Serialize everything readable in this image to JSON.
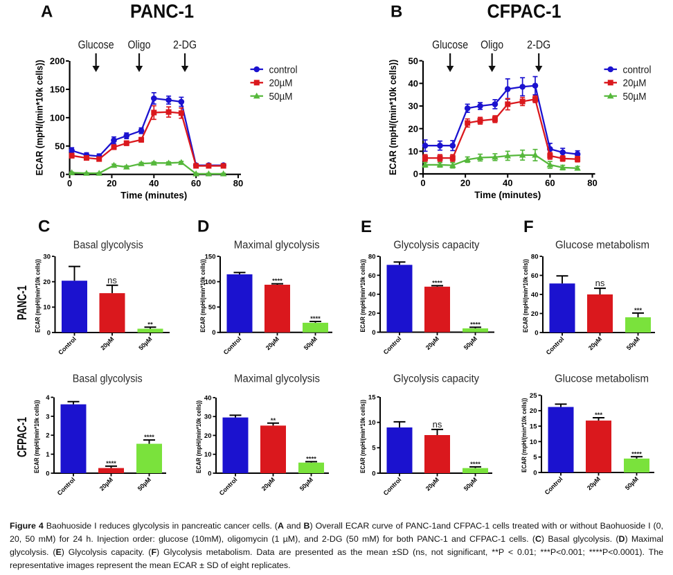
{
  "figure": {
    "panels": {
      "A": {
        "letter": "A",
        "title": "PANC-1"
      },
      "B": {
        "letter": "B",
        "title": "CFPAC-1"
      },
      "C": {
        "letter": "C"
      },
      "D": {
        "letter": "D"
      },
      "E": {
        "letter": "E"
      },
      "F": {
        "letter": "F"
      }
    },
    "row_labels": [
      "PANC-1",
      "CFPAC-1"
    ]
  },
  "colors": {
    "control": "#1b12cf",
    "dose20": "#da181d",
    "dose50_line": "#56b83c",
    "dose50_bar": "#7ae23c",
    "axis": "#000000",
    "background": "#ffffff"
  },
  "chart_data": [
    {
      "id": "A",
      "type": "line",
      "title": "PANC-1",
      "xlabel": "Time (minutes)",
      "ylabel": "ECAR (mpH/(min*10k cells))",
      "xlim": [
        0,
        80
      ],
      "ylim": [
        0,
        200
      ],
      "xticks": [
        0,
        20,
        40,
        60,
        80
      ],
      "yticks": [
        0,
        50,
        100,
        150,
        200
      ],
      "annotations": [
        {
          "label": "Glucose",
          "x": 12.5
        },
        {
          "label": "Oligo",
          "x": 33
        },
        {
          "label": "2-DG",
          "x": 54.7
        }
      ],
      "x": [
        1,
        8,
        14,
        21,
        27,
        34,
        40,
        47,
        53,
        60,
        66,
        73
      ],
      "series": [
        {
          "name": "control",
          "color_key": "control",
          "marker": "circle",
          "values": [
            42,
            34,
            32,
            60,
            68,
            77,
            134,
            131,
            128,
            16,
            16,
            16
          ],
          "errors": [
            5,
            4,
            4,
            6,
            5,
            5,
            10,
            7,
            8,
            2,
            2,
            2
          ]
        },
        {
          "name": "20µM",
          "color_key": "dose20",
          "marker": "square",
          "values": [
            33,
            29,
            27,
            48,
            55,
            61,
            109,
            110,
            108,
            15,
            15,
            15
          ],
          "errors": [
            4,
            3,
            3,
            4,
            4,
            4,
            12,
            9,
            9,
            2,
            2,
            2
          ]
        },
        {
          "name": "50µM",
          "color_key": "dose50_line",
          "marker": "triangle",
          "values": [
            3,
            2,
            2,
            16,
            13,
            19,
            20,
            20,
            21,
            1,
            1,
            1
          ],
          "errors": [
            1,
            1,
            1,
            2,
            2,
            2,
            2,
            2,
            2,
            1,
            1,
            1
          ]
        }
      ]
    },
    {
      "id": "B",
      "type": "line",
      "title": "CFPAC-1",
      "xlabel": "Time (minutes)",
      "ylabel": "ECAR (mpH/(min*10k cells))",
      "xlim": [
        0,
        80
      ],
      "ylim": [
        0,
        50
      ],
      "xticks": [
        0,
        20,
        40,
        60,
        80
      ],
      "yticks": [
        0,
        10,
        20,
        30,
        40,
        50
      ],
      "annotations": [
        {
          "label": "Glucose",
          "x": 12.8
        },
        {
          "label": "Oligo",
          "x": 32.6
        },
        {
          "label": "2-DG",
          "x": 54.7
        }
      ],
      "x": [
        1,
        8,
        14,
        21,
        27,
        34,
        40,
        47,
        53,
        60,
        66,
        73
      ],
      "series": [
        {
          "name": "control",
          "color_key": "control",
          "marker": "circle",
          "values": [
            12.5,
            12.5,
            12.5,
            29,
            30,
            30.8,
            37.5,
            38.5,
            39,
            11,
            9.5,
            8.7
          ],
          "errors": [
            2.5,
            2,
            2.2,
            1.8,
            1.5,
            2,
            4.5,
            4,
            4,
            2.5,
            1.8,
            1.5
          ]
        },
        {
          "name": "20µM",
          "color_key": "dose20",
          "marker": "square",
          "values": [
            7,
            7,
            7,
            22.5,
            23.5,
            24.2,
            30.8,
            32,
            33,
            8,
            6.8,
            6.5
          ],
          "errors": [
            1.5,
            1.5,
            1.5,
            1.8,
            1.5,
            1.5,
            2.5,
            1.8,
            1.5,
            1.5,
            1.2,
            1.2
          ]
        },
        {
          "name": "50µM",
          "color_key": "dose50_line",
          "marker": "triangle",
          "values": [
            4,
            4,
            3.8,
            6.3,
            7.2,
            7.4,
            8,
            8.3,
            8.3,
            4,
            2.8,
            2.5
          ],
          "errors": [
            1,
            1,
            1.2,
            1.2,
            1.5,
            1.5,
            2,
            2.2,
            2.5,
            1.5,
            1,
            0.8
          ]
        }
      ]
    },
    {
      "id": "C1",
      "type": "bar",
      "row": "PANC-1",
      "title": "Basal glycolysis",
      "ylabel": "ECAR (mpH/(min*10k cells))",
      "ylim": [
        0,
        30
      ],
      "yticks": [
        0,
        10,
        20,
        30
      ],
      "categories": [
        "Control",
        "20µM",
        "50µM"
      ],
      "values": [
        20.4,
        15.5,
        1.5
      ],
      "errors": [
        5.6,
        3.1,
        0.6
      ],
      "sig": [
        "",
        "ns",
        "**"
      ]
    },
    {
      "id": "D1",
      "type": "bar",
      "row": "PANC-1",
      "title": "Maximal glycolysis",
      "ylabel": "ECAR (mpH/(min*10k cells))",
      "ylim": [
        0,
        150
      ],
      "yticks": [
        0,
        50,
        100,
        150
      ],
      "categories": [
        "Control",
        "20µM",
        "50µM"
      ],
      "values": [
        114.5,
        94,
        19
      ],
      "errors": [
        3.5,
        1.8,
        2.5
      ],
      "sig": [
        "",
        "****",
        "****"
      ]
    },
    {
      "id": "E1",
      "type": "bar",
      "row": "PANC-1",
      "title": "Glycolysis capacity",
      "ylabel": "ECAR (mpH/(min*10k cells))",
      "ylim": [
        0,
        80
      ],
      "yticks": [
        0,
        20,
        40,
        60,
        80
      ],
      "categories": [
        "Control",
        "20µM",
        "50µM"
      ],
      "values": [
        71,
        48,
        4
      ],
      "errors": [
        3,
        1,
        1.2
      ],
      "sig": [
        "",
        "****",
        "****"
      ]
    },
    {
      "id": "F1",
      "type": "bar",
      "row": "PANC-1",
      "title": "Glucose metabolism",
      "ylabel": "ECAR (mpH/(min*10k cells))",
      "ylim": [
        0,
        80
      ],
      "yticks": [
        0,
        20,
        40,
        60,
        80
      ],
      "categories": [
        "Control",
        "20µM",
        "50µM"
      ],
      "values": [
        51.5,
        40,
        16
      ],
      "errors": [
        8,
        6.5,
        4.5
      ],
      "sig": [
        "",
        "ns",
        "***"
      ]
    },
    {
      "id": "C2",
      "type": "bar",
      "row": "CFPAC-1",
      "title": "Basal glycolysis",
      "ylabel": "ECAR (mpH/(min*10k cells))",
      "ylim": [
        0,
        4
      ],
      "yticks": [
        0,
        1,
        2,
        3,
        4
      ],
      "categories": [
        "Control",
        "20µM",
        "50µM"
      ],
      "values": [
        3.63,
        0.27,
        1.55
      ],
      "errors": [
        0.14,
        0.1,
        0.2
      ],
      "sig": [
        "",
        "****",
        "****"
      ]
    },
    {
      "id": "D2",
      "type": "bar",
      "row": "CFPAC-1",
      "title": "Maximal glycolysis",
      "ylabel": "ECAR (mpH/(min*10k cells))",
      "ylim": [
        0,
        40
      ],
      "yticks": [
        0,
        10,
        20,
        30,
        40
      ],
      "categories": [
        "Control",
        "20µM",
        "50µM"
      ],
      "values": [
        29.5,
        25.2,
        5.6
      ],
      "errors": [
        1.2,
        1.3,
        0.5
      ],
      "sig": [
        "",
        "**",
        "****"
      ]
    },
    {
      "id": "E2",
      "type": "bar",
      "row": "CFPAC-1",
      "title": "Glycolysis capacity",
      "ylabel": "ECAR (mpH/(min*10k cells))",
      "ylim": [
        0,
        15
      ],
      "yticks": [
        0,
        5,
        10,
        15
      ],
      "categories": [
        "Control",
        "20µM",
        "50µM"
      ],
      "values": [
        9,
        7.5,
        1
      ],
      "errors": [
        1.1,
        1.1,
        0.25
      ],
      "sig": [
        "",
        "ns",
        "****"
      ]
    },
    {
      "id": "F2",
      "type": "bar",
      "row": "CFPAC-1",
      "title": "Glucose metabolism",
      "ylabel": "ECAR (mpH/(min*10k cells))",
      "ylim": [
        0,
        25
      ],
      "yticks": [
        0,
        5,
        10,
        15,
        20,
        25
      ],
      "categories": [
        "Control",
        "20µM",
        "50µM"
      ],
      "values": [
        21.2,
        16.8,
        4.5
      ],
      "errors": [
        0.9,
        0.9,
        0.6
      ],
      "sig": [
        "",
        "***",
        "****"
      ]
    }
  ],
  "caption": {
    "segments": [
      {
        "text": "Figure 4",
        "bold": true
      },
      {
        "text": " Baohuoside I reduces glycolysis in pancreatic cancer cells. (",
        "bold": false
      },
      {
        "text": "A",
        "bold": true
      },
      {
        "text": " and ",
        "bold": false
      },
      {
        "text": "B",
        "bold": true
      },
      {
        "text": ") Overall ECAR curve of PANC-1and CFPAC-1 cells treated with or without Baohuoside I (0, 20, 50 mM) for 24 h. Injection order: glucose (10mM), oligomycin (1 µM), and 2-DG (50 mM) for both PANC-1 and CFPAC-1 cells. (",
        "bold": false
      },
      {
        "text": "C",
        "bold": true
      },
      {
        "text": ") Basal glycolysis. (",
        "bold": false
      },
      {
        "text": "D",
        "bold": true
      },
      {
        "text": ") Maximal glycolysis. (",
        "bold": false
      },
      {
        "text": "E",
        "bold": true
      },
      {
        "text": ") Glycolysis capacity. (",
        "bold": false
      },
      {
        "text": "F",
        "bold": true
      },
      {
        "text": ") Glycolysis metabolism. Data are presented as the mean ±SD (ns, not significant, **P < 0.01; ***P<0.001; ****P<0.0001). The representative images represent the mean ECAR ± SD of eight replicates.",
        "bold": false
      }
    ]
  }
}
